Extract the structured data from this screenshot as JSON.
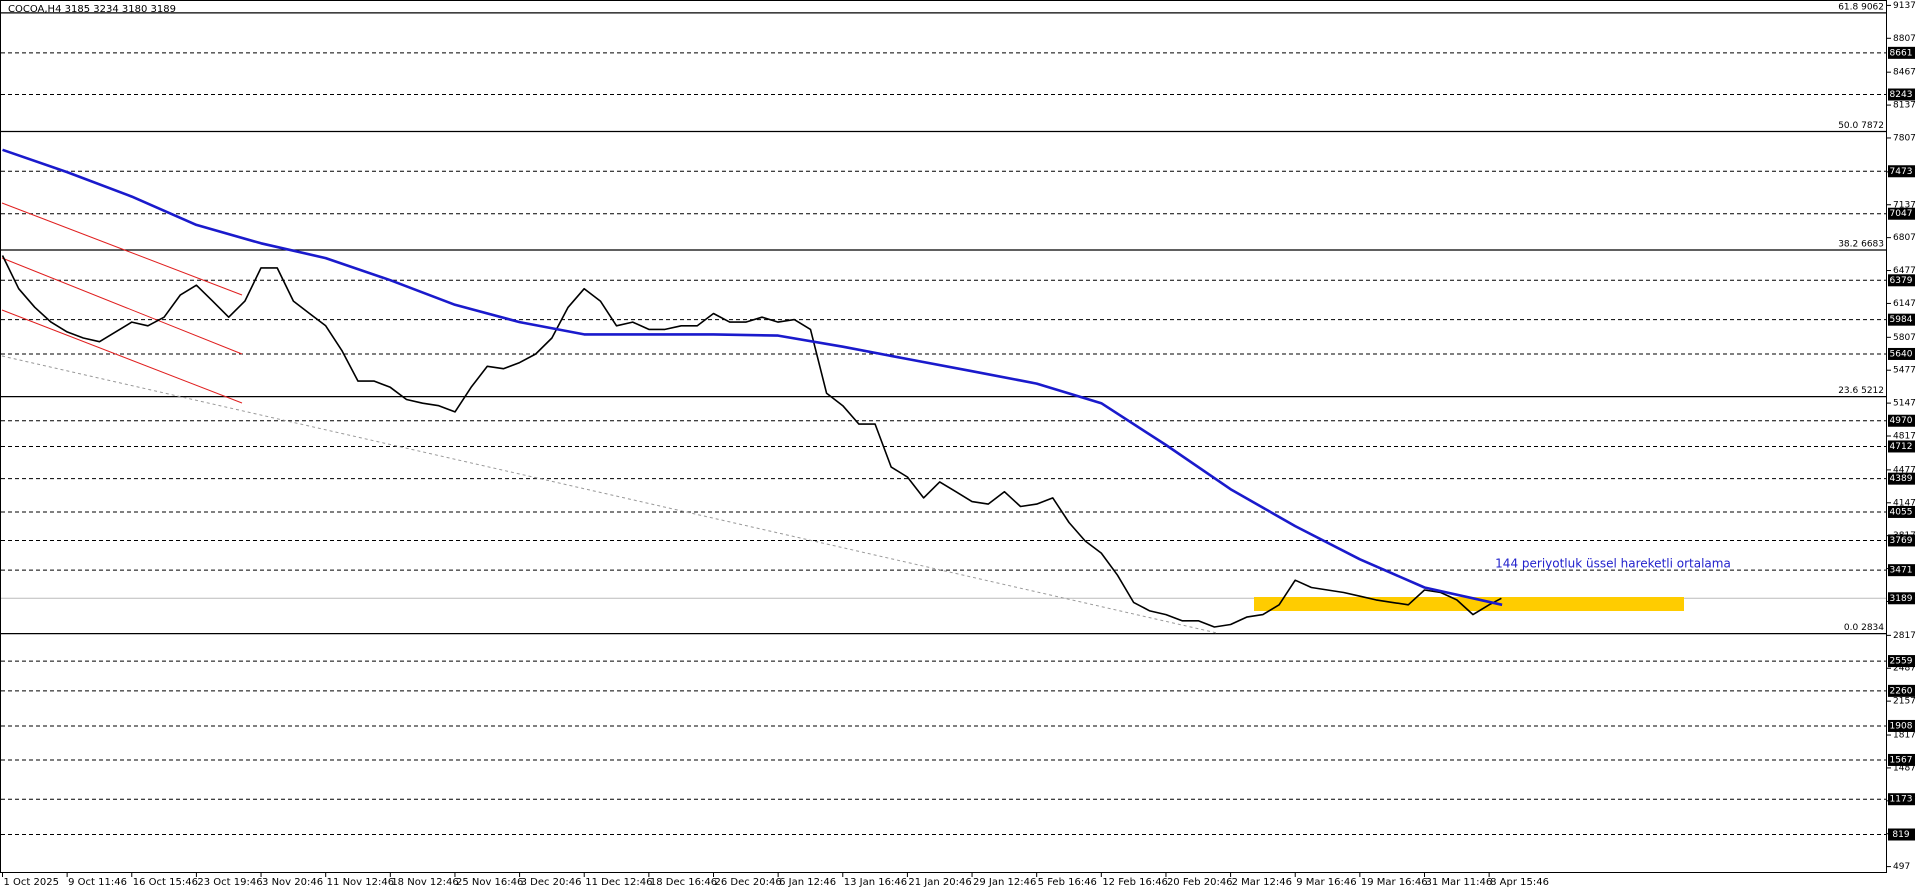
{
  "chart_data": {
    "type": "line",
    "title": "COCOA,H4  3185 3234 3180 3189",
    "xlim": [
      0,
      29.14
    ],
    "xticks": [
      {
        "value": 0,
        "label": "1 Oct 2025"
      },
      {
        "value": 1,
        "label": "9 Oct 11:46"
      },
      {
        "value": 2,
        "label": "16 Oct 15:46"
      },
      {
        "value": 3,
        "label": "23 Oct 19:46"
      },
      {
        "value": 4,
        "label": "3 Nov 20:46"
      },
      {
        "value": 5,
        "label": "11 Nov 12:46"
      },
      {
        "value": 6,
        "label": "18 Nov 12:46"
      },
      {
        "value": 7,
        "label": "25 Nov 16:46"
      },
      {
        "value": 8,
        "label": "3 Dec 20:46"
      },
      {
        "value": 9,
        "label": "11 Dec 12:46"
      },
      {
        "value": 10,
        "label": "18 Dec 16:46"
      },
      {
        "value": 11,
        "label": "26 Dec 20:46"
      },
      {
        "value": 12,
        "label": "6 Jan 12:46"
      },
      {
        "value": 13,
        "label": "13 Jan 16:46"
      },
      {
        "value": 14,
        "label": "21 Jan 20:46"
      },
      {
        "value": 15,
        "label": "29 Jan 12:46"
      },
      {
        "value": 16,
        "label": "5 Feb 16:46"
      },
      {
        "value": 17,
        "label": "12 Feb 16:46"
      },
      {
        "value": 18,
        "label": "20 Feb 20:46"
      },
      {
        "value": 19,
        "label": "2 Mar 12:46"
      },
      {
        "value": 20,
        "label": "9 Mar 16:46"
      },
      {
        "value": 21,
        "label": "19 Mar 16:46"
      },
      {
        "value": 22,
        "label": "31 Mar 11:46"
      },
      {
        "value": 23,
        "label": "8 Apr 15:46"
      }
    ],
    "ylim": [
      497,
      9137
    ],
    "yticks": [
      9137,
      8807,
      8467,
      8137,
      7807,
      7467,
      7137,
      6807,
      6477,
      6147,
      5807,
      5477,
      5147,
      4817,
      4477,
      4147,
      3817,
      3487,
      3157,
      2817,
      2487,
      2157,
      1817,
      1487,
      1157,
      827,
      497
    ],
    "levels": [
      8661,
      8243,
      7473,
      7047,
      6379,
      5984,
      5640,
      4970,
      4712,
      4389,
      4055,
      3769,
      3471,
      2559,
      2260,
      1908,
      1567,
      1173,
      819
    ],
    "last_price": 3189,
    "fib_levels": [
      {
        "value": 9062,
        "label": "61.8 9062"
      },
      {
        "value": 7872,
        "label": "50.0 7872"
      },
      {
        "value": 6683,
        "label": "38.2 6683"
      },
      {
        "value": 5212,
        "label": "23.6 5212"
      },
      {
        "value": 2834,
        "label": "0.0 2834"
      }
    ],
    "series": [
      {
        "color": "#000000",
        "x": [
          0,
          0.25,
          0.5,
          0.75,
          1,
          1.25,
          1.5,
          1.75,
          2,
          2.25,
          2.5,
          2.75,
          3,
          3.25,
          3.5,
          3.75,
          4,
          4.25,
          4.5,
          4.75,
          5,
          5.25,
          5.5,
          5.75,
          6,
          6.25,
          6.5,
          6.75,
          7,
          7.25,
          7.5,
          7.75,
          8,
          8.25,
          8.5,
          8.75,
          9,
          9.25,
          9.5,
          9.75,
          10,
          10.25,
          10.5,
          10.75,
          11,
          11.25,
          11.5,
          11.75,
          12,
          12.25,
          12.5,
          12.75,
          13,
          13.25,
          13.5,
          13.75,
          14,
          14.25,
          14.5,
          14.75,
          15,
          15.25,
          15.5,
          15.75,
          16,
          16.25,
          16.5,
          16.75,
          17,
          17.25,
          17.5,
          17.75,
          18,
          18.25,
          18.5,
          18.75,
          19,
          19.25,
          19.5,
          19.75,
          20,
          20.25,
          20.5,
          20.75,
          21,
          21.25,
          21.5,
          21.75,
          22,
          22.25,
          22.5,
          22.75,
          23,
          23.19
        ],
        "values": [
          6628,
          6295,
          6108,
          5960,
          5861,
          5800,
          5763,
          5861,
          5960,
          5923,
          6009,
          6231,
          6330,
          6170,
          6009,
          6170,
          6503,
          6503,
          6170,
          6046,
          5923,
          5676,
          5368,
          5368,
          5306,
          5183,
          5146,
          5121,
          5059,
          5306,
          5516,
          5492,
          5553,
          5640,
          5800,
          6108,
          6295,
          6170,
          5923,
          5960,
          5886,
          5886,
          5923,
          5923,
          6046,
          5960,
          5960,
          6009,
          5960,
          5985,
          5886,
          5245,
          5121,
          4936,
          4936,
          4505,
          4406,
          4196,
          4357,
          4258,
          4159,
          4134,
          4258,
          4110,
          4134,
          4196,
          3949,
          3764,
          3642,
          3420,
          3148,
          3062,
          3025,
          2963,
          2963,
          2901,
          2926,
          3000,
          3025,
          3124,
          3370,
          3297,
          3272,
          3247,
          3210,
          3173,
          3148,
          3124,
          3272,
          3247,
          3173,
          3025,
          3124,
          3189
        ]
      },
      {
        "name": "144 periyotluk üssel hareketli ortalama",
        "color": "#1a1acc",
        "x": [
          0,
          1,
          2,
          3,
          4,
          5,
          6,
          7,
          8,
          9,
          10,
          11,
          12,
          13,
          14,
          15,
          16,
          17,
          18,
          19,
          20,
          21,
          22,
          23.2
        ],
        "values": [
          7688,
          7465,
          7219,
          6935,
          6750,
          6602,
          6380,
          6133,
          5960,
          5836,
          5836,
          5836,
          5824,
          5713,
          5590,
          5467,
          5343,
          5146,
          4727,
          4283,
          3913,
          3580,
          3297,
          3124
        ]
      }
    ]
  }
}
